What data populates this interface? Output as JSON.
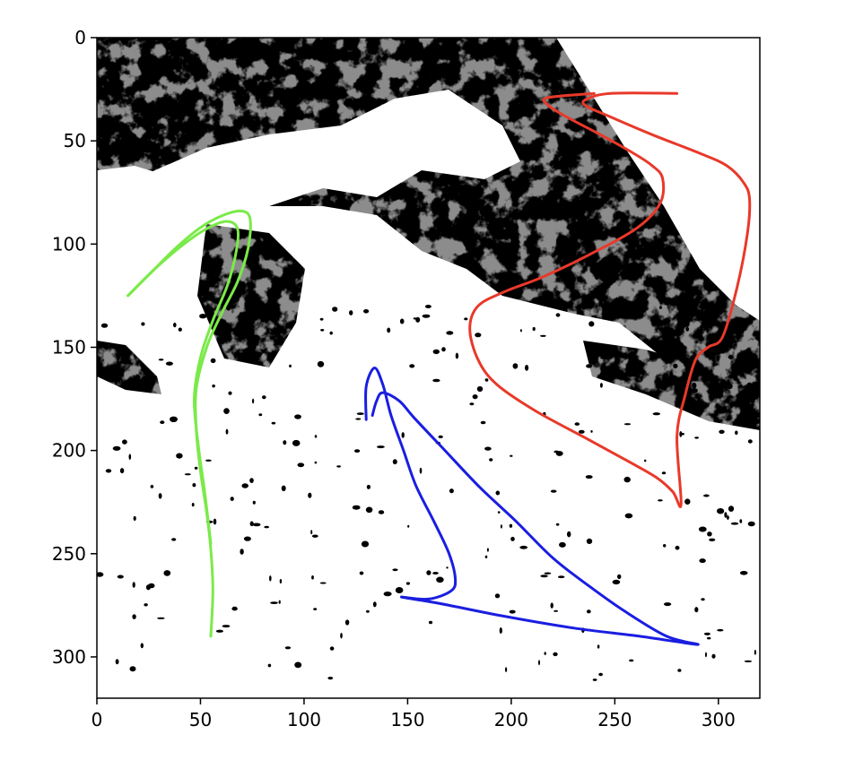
{
  "chart_data": {
    "type": "image",
    "title": "",
    "xlabel": "",
    "ylabel": "",
    "xlim": [
      0,
      320
    ],
    "ylim": [
      320,
      0
    ],
    "x_ticks": [
      0,
      50,
      100,
      150,
      200,
      250,
      300
    ],
    "y_ticks": [
      0,
      50,
      100,
      150,
      200,
      250,
      300
    ],
    "background": {
      "description_free": true,
      "palette": [
        "#000000",
        "#ffffff"
      ]
    },
    "series": [
      {
        "color": "#e8392a",
        "points": [
          [
            280,
            27
          ],
          [
            248,
            27
          ],
          [
            236,
            30
          ],
          [
            236,
            33
          ],
          [
            247,
            38
          ],
          [
            268,
            47
          ],
          [
            291,
            56
          ],
          [
            304,
            62
          ],
          [
            312,
            70
          ],
          [
            315,
            78
          ],
          [
            314,
            95
          ],
          [
            309,
            121
          ],
          [
            302,
            145
          ],
          [
            295,
            150
          ],
          [
            289,
            156
          ],
          [
            284,
            173
          ],
          [
            280,
            193
          ],
          [
            282,
            226
          ],
          [
            278,
            220
          ],
          [
            270,
            213
          ],
          [
            256,
            205
          ],
          [
            236,
            194
          ],
          [
            212,
            181
          ],
          [
            193,
            168
          ],
          [
            184,
            156
          ],
          [
            180,
            141
          ],
          [
            184,
            130
          ],
          [
            197,
            123
          ],
          [
            215,
            116
          ],
          [
            238,
            105
          ],
          [
            261,
            92
          ],
          [
            272,
            80
          ],
          [
            273,
            68
          ],
          [
            268,
            62
          ],
          [
            259,
            56
          ],
          [
            243,
            47
          ],
          [
            226,
            38
          ],
          [
            217,
            32
          ],
          [
            218,
            29
          ],
          [
            240,
            27
          ]
        ]
      },
      {
        "color": "#1a1ee0",
        "points": [
          [
            130,
            185
          ],
          [
            130,
            169
          ],
          [
            134,
            160
          ],
          [
            138,
            168
          ],
          [
            142,
            183
          ],
          [
            148,
            200
          ],
          [
            154,
            217
          ],
          [
            163,
            235
          ],
          [
            170,
            250
          ],
          [
            173,
            262
          ],
          [
            171,
            268
          ],
          [
            160,
            272
          ],
          [
            147,
            271
          ],
          [
            165,
            274
          ],
          [
            195,
            280
          ],
          [
            230,
            286
          ],
          [
            262,
            290
          ],
          [
            290,
            294
          ],
          [
            275,
            290
          ],
          [
            255,
            278
          ],
          [
            238,
            266
          ],
          [
            220,
            252
          ],
          [
            202,
            234
          ],
          [
            185,
            218
          ],
          [
            168,
            200
          ],
          [
            153,
            184
          ],
          [
            146,
            176
          ],
          [
            138,
            172
          ],
          [
            135,
            176
          ],
          [
            133,
            183
          ]
        ]
      },
      {
        "color": "#7aea49",
        "points": [
          [
            15,
            125
          ],
          [
            26,
            114
          ],
          [
            38,
            102
          ],
          [
            50,
            92
          ],
          [
            61,
            86
          ],
          [
            70,
            84
          ],
          [
            74,
            88
          ],
          [
            73,
            102
          ],
          [
            68,
            118
          ],
          [
            60,
            134
          ],
          [
            53,
            150
          ],
          [
            48,
            170
          ],
          [
            48,
            190
          ],
          [
            50,
            210
          ],
          [
            53,
            230
          ],
          [
            55,
            248
          ],
          [
            56,
            268
          ],
          [
            55,
            290
          ]
        ]
      },
      {
        "color": "#7aea49",
        "points": [
          [
            15,
            125
          ],
          [
            28,
            112
          ],
          [
            42,
            100
          ],
          [
            54,
            92
          ],
          [
            63,
            89
          ],
          [
            68,
            93
          ],
          [
            67,
            105
          ],
          [
            63,
            120
          ],
          [
            56,
            137
          ],
          [
            50,
            155
          ],
          [
            47,
            175
          ],
          [
            49,
            198
          ],
          [
            52,
            220
          ],
          [
            55,
            245
          ]
        ]
      }
    ]
  }
}
